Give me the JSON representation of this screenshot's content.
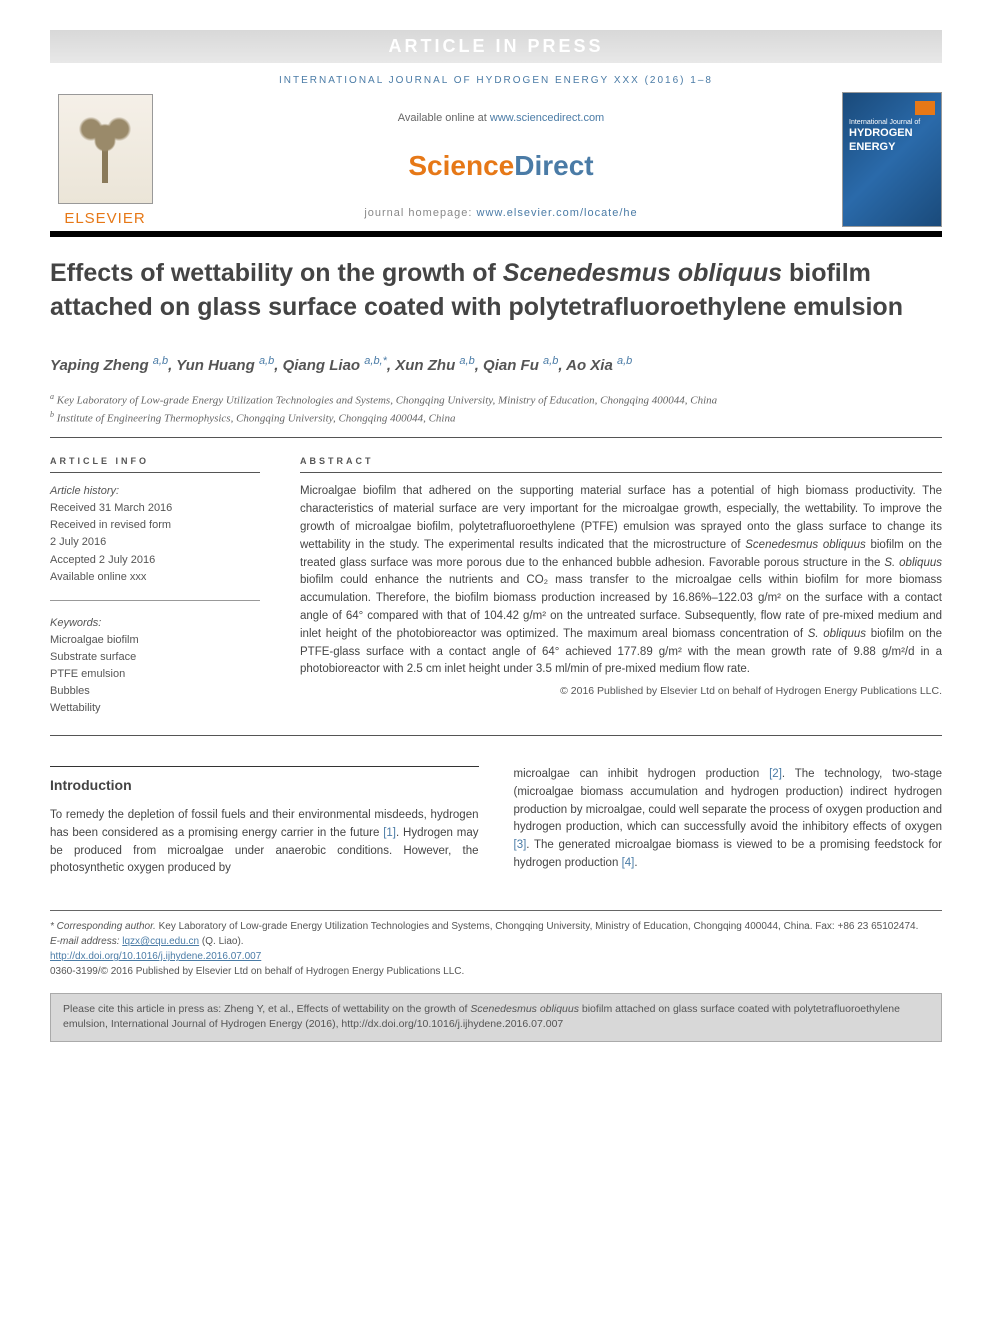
{
  "banner": {
    "article_in_press": "ARTICLE IN PRESS",
    "journal_ref": "INTERNATIONAL JOURNAL OF HYDROGEN ENERGY XXX (2016) 1–8"
  },
  "header": {
    "available_text": "Available online at ",
    "available_url": "www.sciencedirect.com",
    "sciencedirect_science": "Science",
    "sciencedirect_direct": "Direct",
    "homepage_label": "journal homepage: ",
    "homepage_url": "www.elsevier.com/locate/he",
    "elsevier": "ELSEVIER",
    "cover_line1": "International Journal of",
    "cover_line2": "HYDROGEN",
    "cover_line3": "ENERGY"
  },
  "title": {
    "pre": "Effects of wettability on the growth of ",
    "species": "Scenedesmus obliquus",
    "post": " biofilm attached on glass surface coated with polytetrafluoroethylene emulsion"
  },
  "authors": [
    {
      "name": "Yaping Zheng",
      "aff": "a,b"
    },
    {
      "name": "Yun Huang",
      "aff": "a,b"
    },
    {
      "name": "Qiang Liao",
      "aff": "a,b,*"
    },
    {
      "name": "Xun Zhu",
      "aff": "a,b"
    },
    {
      "name": "Qian Fu",
      "aff": "a,b"
    },
    {
      "name": "Ao Xia",
      "aff": "a,b"
    }
  ],
  "affiliations": [
    {
      "label": "a",
      "text": "Key Laboratory of Low-grade Energy Utilization Technologies and Systems, Chongqing University, Ministry of Education, Chongqing 400044, China"
    },
    {
      "label": "b",
      "text": "Institute of Engineering Thermophysics, Chongqing University, Chongqing 400044, China"
    }
  ],
  "article_info": {
    "heading": "ARTICLE INFO",
    "history_label": "Article history:",
    "received": "Received 31 March 2016",
    "revised": "Received in revised form",
    "revised_date": "2 July 2016",
    "accepted": "Accepted 2 July 2016",
    "online": "Available online xxx",
    "keywords_label": "Keywords:",
    "keywords": [
      "Microalgae biofilm",
      "Substrate surface",
      "PTFE emulsion",
      "Bubbles",
      "Wettability"
    ]
  },
  "abstract": {
    "heading": "ABSTRACT",
    "text_parts": [
      "Microalgae biofilm that adhered on the supporting material surface has a potential of high biomass productivity. The characteristics of material surface are very important for the microalgae growth, especially, the wettability. To improve the growth of microalgae biofilm, polytetrafluoroethylene (PTFE) emulsion was sprayed onto the glass surface to change its wettability in the study. The experimental results indicated that the microstructure of ",
      "Scenedesmus obliquus",
      " biofilm on the treated glass surface was more porous due to the enhanced bubble adhesion. Favorable porous structure in the ",
      "S. obliquus",
      " biofilm could enhance the nutrients and CO₂ mass transfer to the microalgae cells within biofilm for more biomass accumulation. Therefore, the biofilm biomass production increased by 16.86%–122.03 g/m² on the surface with a contact angle of 64° compared with that of 104.42 g/m² on the untreated surface. Subsequently, flow rate of pre-mixed medium and inlet height of the photobioreactor was optimized. The maximum areal biomass concentration of ",
      "S. obliquus",
      " biofilm on the PTFE-glass surface with a contact angle of 64° achieved 177.89 g/m² with the mean growth rate of 9.88 g/m²/d in a photobioreactor with 2.5 cm inlet height under 3.5 ml/min of pre-mixed medium flow rate."
    ],
    "copyright": "© 2016 Published by Elsevier Ltd on behalf of Hydrogen Energy Publications LLC."
  },
  "body": {
    "intro_heading": "Introduction",
    "col1": {
      "pre": "To remedy the depletion of fossil fuels and their environmental misdeeds, hydrogen has been considered as a promising energy carrier in the future ",
      "ref1": "[1]",
      "post": ". Hydrogen may be produced from microalgae under anaerobic conditions. However, the photosynthetic oxygen produced by"
    },
    "col2": {
      "p1": "microalgae can inhibit hydrogen production ",
      "r2": "[2]",
      "p2": ". The technology, two-stage (microalgae biomass accumulation and hydrogen production) indirect hydrogen production by microalgae, could well separate the process of oxygen production and hydrogen production, which can successfully avoid the inhibitory effects of oxygen ",
      "r3": "[3]",
      "p3": ". The generated microalgae biomass is viewed to be a promising feedstock for hydrogen production ",
      "r4": "[4]",
      "p4": "."
    }
  },
  "footnote": {
    "corresp_label": "* Corresponding author.",
    "corresp_text": " Key Laboratory of Low-grade Energy Utilization Technologies and Systems, Chongqing University, Ministry of Education, Chongqing 400044, China. Fax: +86 23 65102474.",
    "email_label": "E-mail address: ",
    "email": "lqzx@cqu.edu.cn",
    "email_who": " (Q. Liao).",
    "doi": "http://dx.doi.org/10.1016/j.ijhydene.2016.07.007",
    "issn_line": "0360-3199/© 2016 Published by Elsevier Ltd on behalf of Hydrogen Energy Publications LLC."
  },
  "cite_box": {
    "pre": "Please cite this article in press as: Zheng Y, et al., Effects of wettability on the growth of ",
    "species": "Scenedesmus obliquus",
    "post": " biofilm attached on glass surface coated with polytetrafluoroethylene emulsion, International Journal of Hydrogen Energy (2016), http://dx.doi.org/10.1016/j.ijhydene.2016.07.007"
  },
  "colors": {
    "link": "#4a7ba6",
    "orange": "#e67817",
    "text": "#444444",
    "grey_bg": "#d8d8d8"
  }
}
